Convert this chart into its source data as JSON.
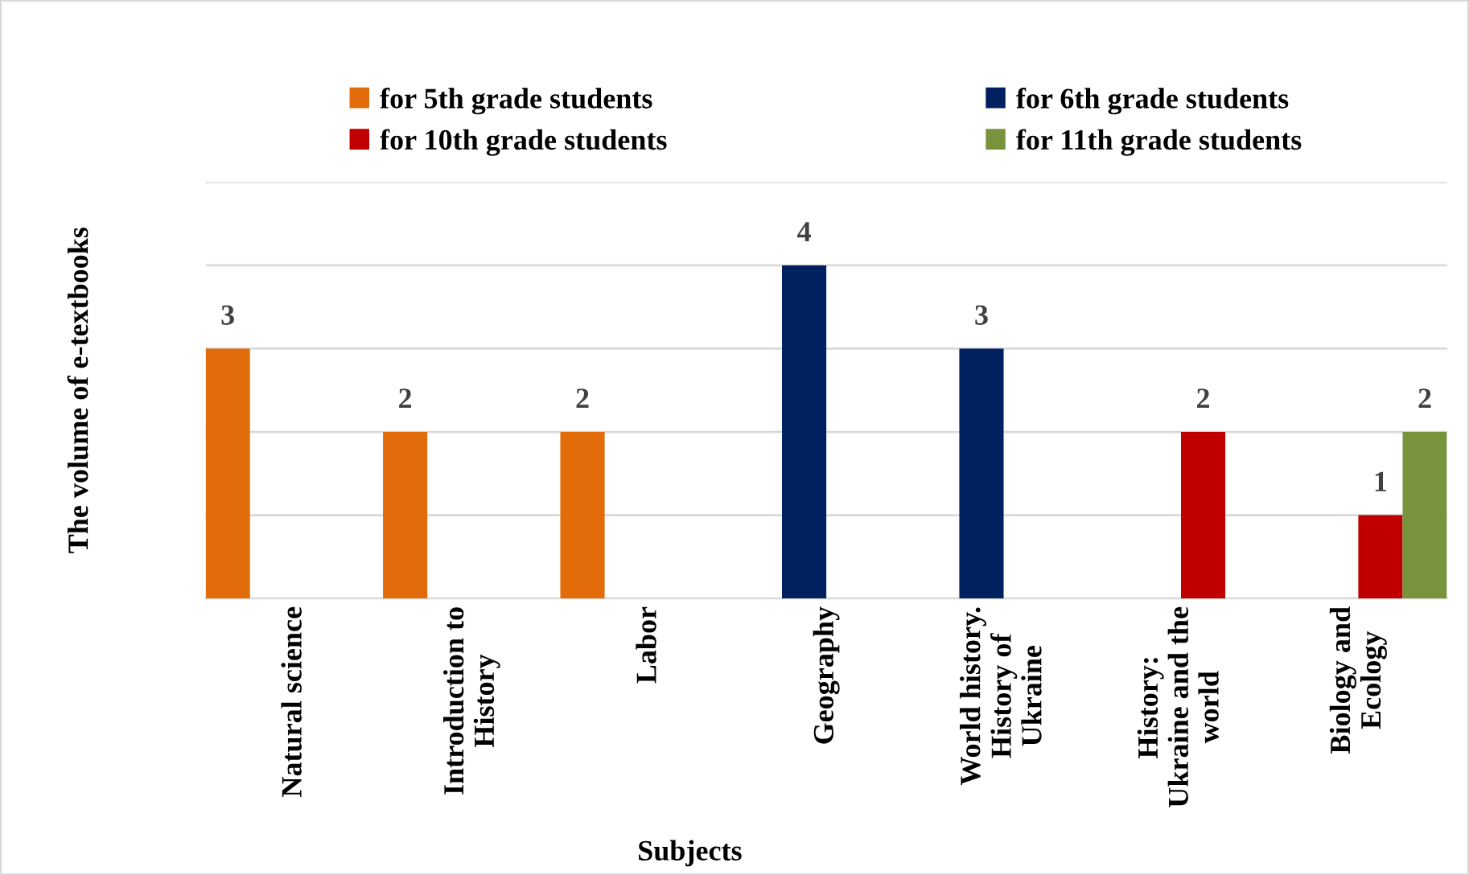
{
  "chart_data": {
    "type": "bar",
    "categories": [
      "Natural science",
      "Introduction to\nHistory",
      "Labor",
      "Geography",
      "World history.\nHistory of\nUkraine",
      "History:\nUkraine and the\nworld",
      "Biology and\nEcology"
    ],
    "series": [
      {
        "name": "for 5th grade students",
        "color": "#e36c0a",
        "values": [
          3,
          2,
          2,
          null,
          null,
          null,
          null
        ]
      },
      {
        "name": "for 6th grade students",
        "color": "#002060",
        "values": [
          null,
          null,
          null,
          4,
          3,
          null,
          null
        ]
      },
      {
        "name": "for 10th grade students",
        "color": "#c00000",
        "values": [
          null,
          null,
          null,
          null,
          null,
          2,
          1
        ]
      },
      {
        "name": "for 11th grade students",
        "color": "#77933c",
        "values": [
          null,
          null,
          null,
          null,
          null,
          null,
          2
        ]
      }
    ],
    "xlabel": "Subjects",
    "ylabel": "The volume of e-textbooks",
    "ylim": [
      0,
      5
    ],
    "yticks": [
      {
        "value": 0,
        "label": null
      },
      {
        "value": 1,
        "label": null
      },
      {
        "value": 2,
        "label": null
      },
      {
        "value": 3,
        "label": null
      },
      {
        "value": 4,
        "label": null
      },
      {
        "value": 5,
        "label": null
      }
    ],
    "tick_labels": "x",
    "grid": "y",
    "legend": "top",
    "data_labels": true
  }
}
